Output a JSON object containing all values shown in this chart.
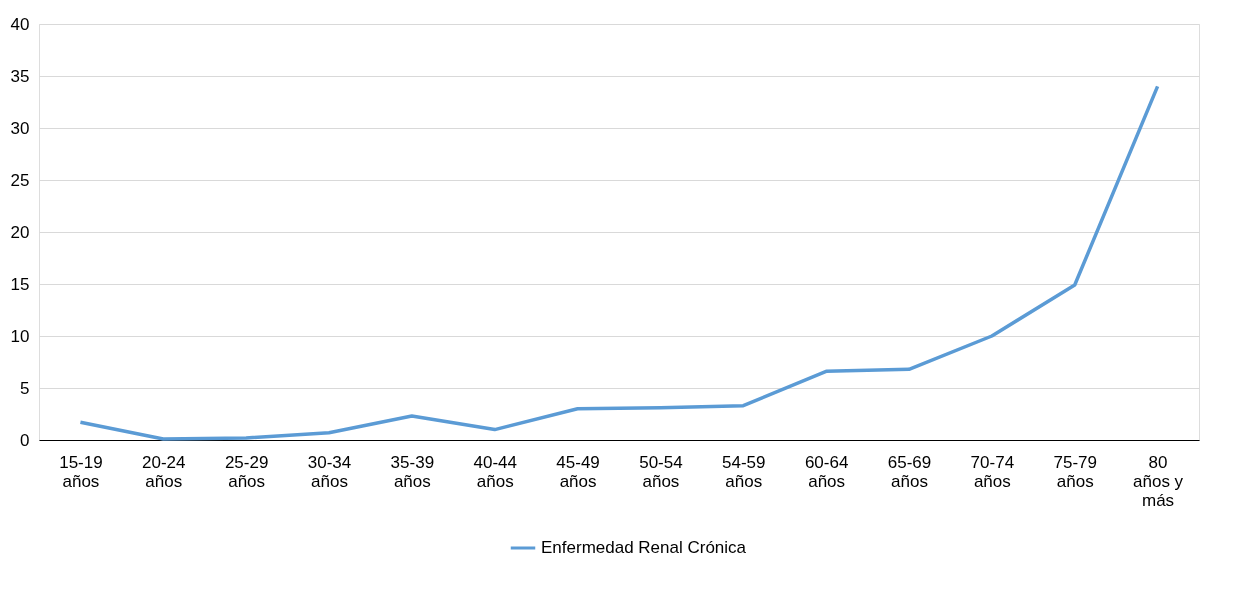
{
  "chart_data": {
    "type": "line",
    "categories": [
      "15-19 años",
      "20-24 años",
      "25-29 años",
      "30-34 años",
      "35-39 años",
      "40-44 años",
      "45-49 años",
      "50-54 años",
      "54-59 años",
      "60-64 años",
      "65-69 años",
      "70-74 años",
      "75-79 años",
      "80 años y más"
    ],
    "series": [
      {
        "name": "Enfermedad Renal Crónica",
        "color": "#5b9bd5",
        "values": [
          1.7,
          0.1,
          0.2,
          0.7,
          2.3,
          1.0,
          3.0,
          3.1,
          3.3,
          6.6,
          6.8,
          10.0,
          14.9,
          34.0
        ]
      }
    ],
    "ylim": [
      0,
      40
    ],
    "yticks": [
      0,
      5,
      10,
      15,
      20,
      25,
      30,
      35,
      40
    ],
    "grid": "y",
    "legend": "bottom",
    "marker": "none",
    "line_style": "solid"
  }
}
